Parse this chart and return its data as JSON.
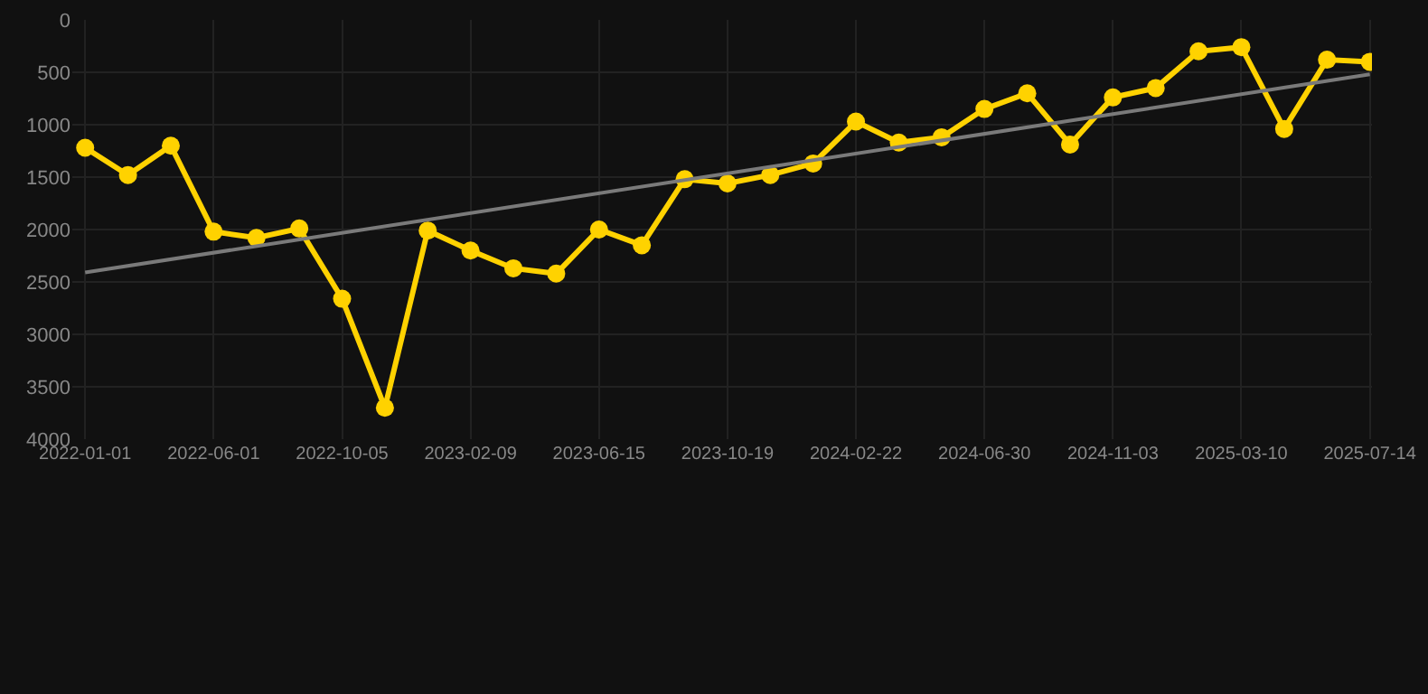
{
  "chart_data": {
    "type": "line",
    "categories": [
      "2022-01-01",
      null,
      null,
      "2022-06-01",
      null,
      null,
      "2022-10-05",
      null,
      null,
      "2023-02-09",
      null,
      null,
      "2023-06-15",
      null,
      null,
      "2023-10-19",
      null,
      null,
      "2024-02-22",
      null,
      null,
      "2024-06-30",
      null,
      null,
      "2024-11-03",
      null,
      null,
      "2025-03-10",
      null,
      null,
      "2025-07-14"
    ],
    "series": [
      {
        "color": "#ffd200",
        "marker": "circle",
        "values": [
          1220,
          1480,
          1200,
          2020,
          2080,
          1990,
          2660,
          3700,
          2010,
          2200,
          2370,
          2420,
          2000,
          2150,
          1520,
          1560,
          1480,
          1370,
          970,
          1170,
          1120,
          850,
          700,
          1190,
          740,
          650,
          300,
          260,
          1040,
          380,
          400
        ]
      },
      {
        "color": "#7a7a7a",
        "marker": "none",
        "values": [
          2410,
          null,
          null,
          null,
          null,
          null,
          null,
          null,
          null,
          null,
          null,
          null,
          null,
          null,
          null,
          null,
          null,
          null,
          null,
          null,
          null,
          null,
          null,
          null,
          null,
          null,
          null,
          null,
          null,
          null,
          520
        ]
      }
    ],
    "ylim": [
      4000,
      0
    ],
    "yticks": [
      0,
      500,
      1000,
      1500,
      2000,
      2500,
      3000,
      3500,
      4000
    ],
    "grid": true
  }
}
